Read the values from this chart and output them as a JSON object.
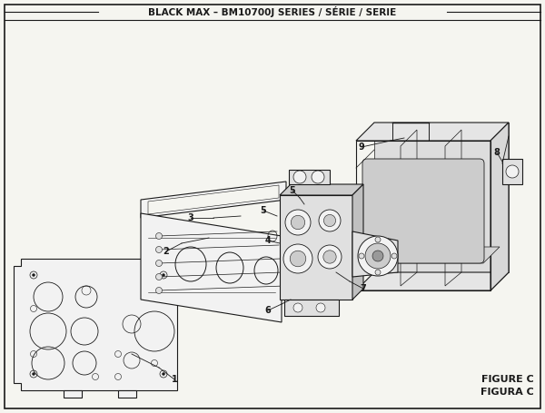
{
  "title": "BLACK MAX – BM10700J SERIES / SÉRIE / SERIE",
  "background_color": "#f5f5f0",
  "border_color": "#1a1a1a",
  "figure_label": "FIGURE C",
  "figura_label": "FIGURA C",
  "title_fontsize": 7.5,
  "label_fontsize": 8.0,
  "dark": "#1a1a1a",
  "gray": "#666666",
  "fill_light": "#f2f2f2",
  "fill_mid": "#e0e0e0",
  "fill_dark": "#cccccc"
}
